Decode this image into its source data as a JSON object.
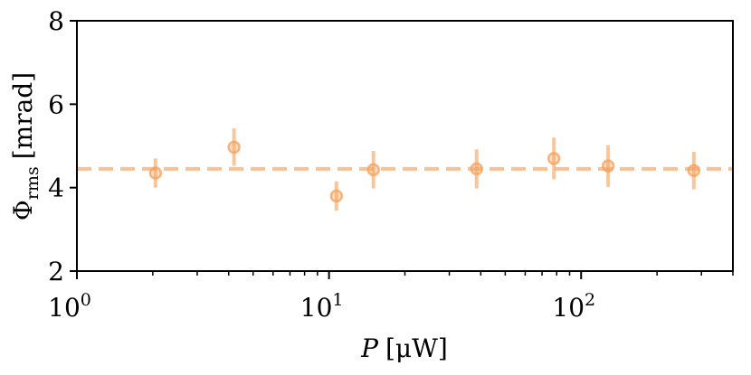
{
  "chart_data": {
    "type": "scatter",
    "xscale": "log",
    "xlim": [
      1,
      400
    ],
    "ylim": [
      2,
      8
    ],
    "xlabel_italic": "P",
    "xlabel_unit": "[μW]",
    "ylabel_main": "Φ",
    "ylabel_sub": "rms",
    "ylabel_unit": "[mrad]",
    "x_ticks": [
      {
        "value": 1,
        "base": "10",
        "exp": "0"
      },
      {
        "value": 10,
        "base": "10",
        "exp": "1"
      },
      {
        "value": 100,
        "base": "10",
        "exp": "2"
      }
    ],
    "y_ticks": [
      {
        "value": 2,
        "label": "2"
      },
      {
        "value": 4,
        "label": "4"
      },
      {
        "value": 6,
        "label": "6"
      },
      {
        "value": 8,
        "label": "8"
      }
    ],
    "points": [
      {
        "x": 2.05,
        "y": 4.35,
        "err": 0.35
      },
      {
        "x": 4.2,
        "y": 4.97,
        "err": 0.45
      },
      {
        "x": 10.7,
        "y": 3.8,
        "err": 0.35
      },
      {
        "x": 15.0,
        "y": 4.43,
        "err": 0.45
      },
      {
        "x": 38.5,
        "y": 4.45,
        "err": 0.47
      },
      {
        "x": 78.0,
        "y": 4.7,
        "err": 0.5
      },
      {
        "x": 128.0,
        "y": 4.52,
        "err": 0.5
      },
      {
        "x": 280.0,
        "y": 4.41,
        "err": 0.45
      }
    ],
    "reference_line": {
      "y": 4.45,
      "style": "dashed"
    },
    "color": "#f5a05a",
    "grid": false
  }
}
